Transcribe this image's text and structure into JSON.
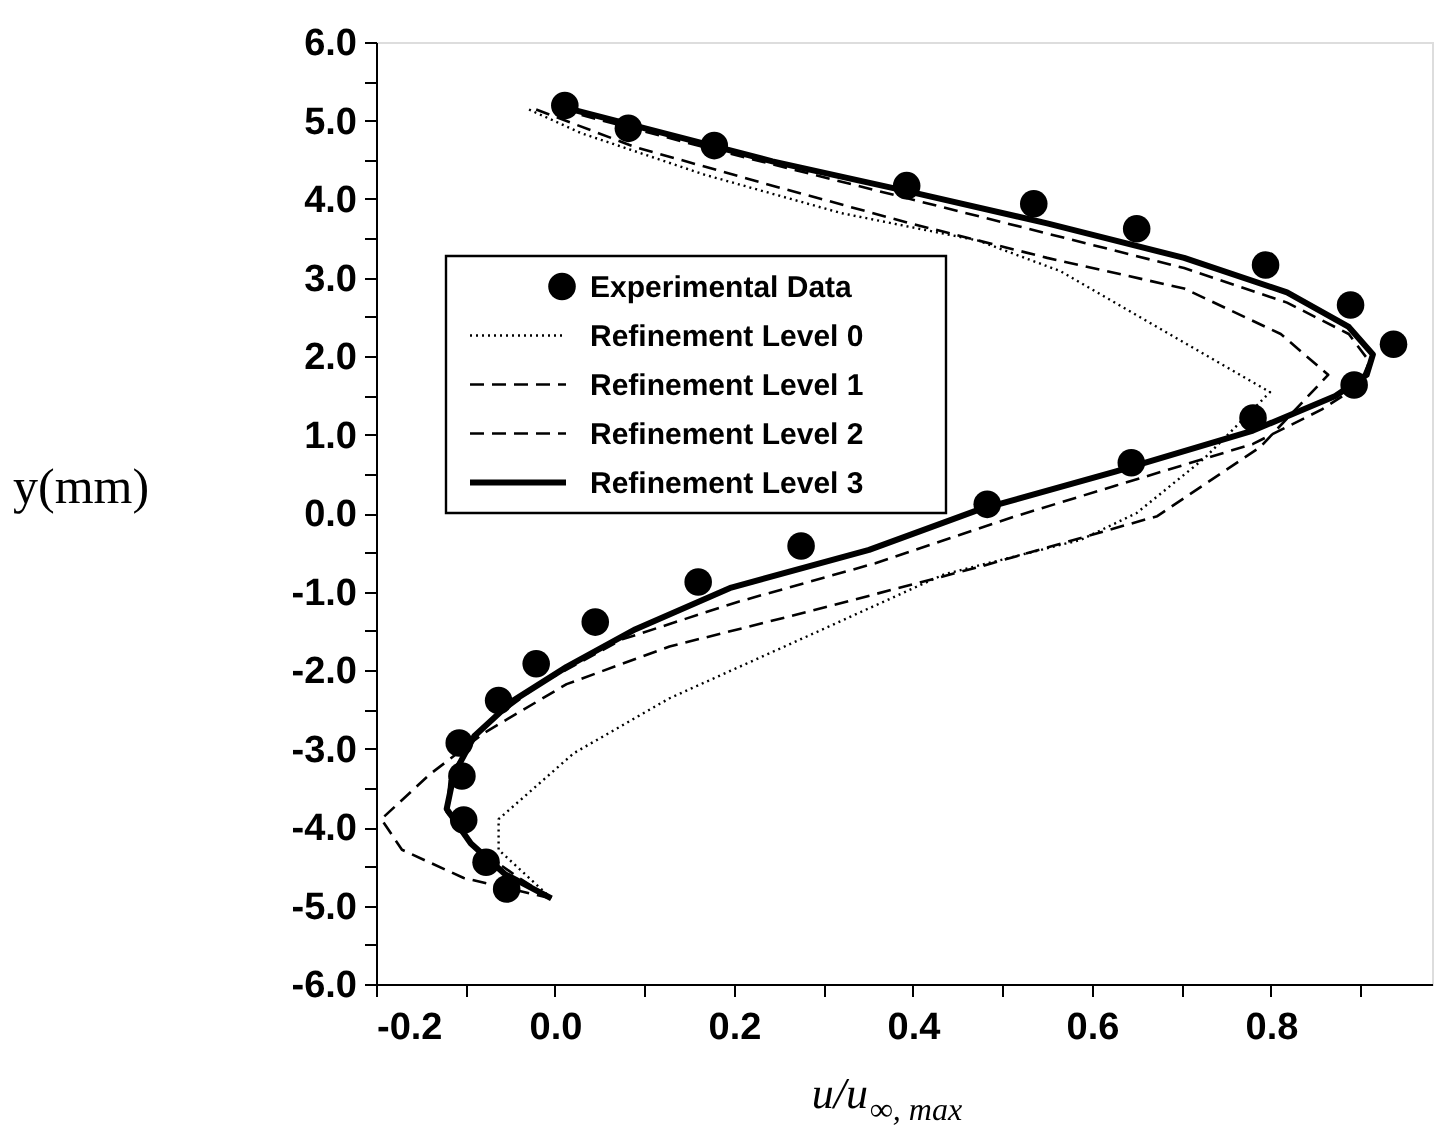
{
  "chart_data": {
    "type": "line",
    "xlabel": "u/u$_{∞, max}$",
    "ylabel": "y(mm)",
    "xlim": [
      -0.2,
      0.98
    ],
    "ylim": [
      -6,
      6
    ],
    "xticks": [
      -0.2,
      {
        "value": -0.1,
        "label": null
      },
      {
        "value": 0,
        "label": "0.0"
      },
      {
        "value": 0.1,
        "label": null
      },
      0.2,
      {
        "value": 0.3,
        "label": null
      },
      0.4,
      {
        "value": 0.5,
        "label": null
      },
      0.6,
      {
        "value": 0.7,
        "label": null
      },
      0.8,
      {
        "value": 0.9,
        "label": null
      }
    ],
    "yticks": [
      {
        "value": -6,
        "label": "-6.0"
      },
      {
        "value": -5.5,
        "label": null
      },
      {
        "value": -5,
        "label": "-5.0"
      },
      {
        "value": -4.5,
        "label": null
      },
      {
        "value": -4,
        "label": "-4.0"
      },
      {
        "value": -3.5,
        "label": null
      },
      {
        "value": -3,
        "label": "-3.0"
      },
      {
        "value": -2.5,
        "label": null
      },
      {
        "value": -2,
        "label": "-2.0"
      },
      {
        "value": -1.5,
        "label": null
      },
      {
        "value": -1,
        "label": "-1.0"
      },
      {
        "value": -0.5,
        "label": null
      },
      {
        "value": 0,
        "label": "0.0"
      },
      {
        "value": 0.5,
        "label": null
      },
      {
        "value": 1,
        "label": "1.0"
      },
      {
        "value": 1.5,
        "label": null
      },
      {
        "value": 2,
        "label": "2.0"
      },
      {
        "value": 2.5,
        "label": null
      },
      {
        "value": 3,
        "label": "3.0"
      },
      {
        "value": 3.5,
        "label": null
      },
      {
        "value": 4,
        "label": "4.0"
      },
      {
        "value": 4.5,
        "label": null
      },
      {
        "value": 5,
        "label": "5.0"
      },
      {
        "value": 5.5,
        "label": null
      },
      {
        "value": 6,
        "label": "6.0"
      }
    ],
    "grid": false,
    "legend": "top left",
    "series": [
      {
        "name": "Experimental Data",
        "type": "scatter",
        "marker": "circle",
        "color": "#000000",
        "x": [
          0.011,
          0.082,
          0.178,
          0.393,
          0.535,
          0.65,
          0.794,
          0.889,
          0.937,
          0.893,
          0.78,
          0.644,
          0.483,
          0.275,
          0.16,
          0.045,
          -0.021,
          -0.063,
          -0.107,
          -0.104,
          -0.102,
          -0.077,
          -0.054
        ],
        "values": [
          5.19,
          4.9,
          4.68,
          4.17,
          3.94,
          3.62,
          3.16,
          2.65,
          2.15,
          1.63,
          1.21,
          0.64,
          0.11,
          -0.42,
          -0.88,
          -1.39,
          -1.92,
          -2.39,
          -2.93,
          -3.35,
          -3.91,
          -4.45,
          -4.79
        ]
      },
      {
        "name": "Refinement Level 0",
        "line_style": "dotted",
        "color": "#000000",
        "x": [
          -0.029,
          0.029,
          0.167,
          0.32,
          0.473,
          0.565,
          0.665,
          0.799,
          0.726,
          0.65,
          0.588,
          0.435,
          0.282,
          0.128,
          0.021,
          -0.063,
          -0.063,
          -0.004
        ],
        "values": [
          5.14,
          4.84,
          4.31,
          3.82,
          3.47,
          3.08,
          2.42,
          1.54,
          0.7,
          0.0,
          -0.34,
          -0.78,
          -1.57,
          -2.36,
          -3.06,
          -3.9,
          -4.29,
          -4.91
        ]
      },
      {
        "name": "Refinement Level 1",
        "line_style": "dashed",
        "color": "#000000",
        "x": [
          -0.021,
          0.09,
          0.243,
          0.397,
          0.55,
          0.703,
          0.811,
          0.864,
          0.788,
          0.673,
          0.473,
          0.282,
          0.128,
          0.013,
          -0.079,
          -0.14,
          -0.194,
          -0.171,
          -0.102,
          -0.004
        ],
        "values": [
          5.14,
          4.66,
          4.17,
          3.69,
          3.25,
          2.86,
          2.28,
          1.76,
          0.84,
          -0.04,
          -0.69,
          -1.26,
          -1.7,
          -2.18,
          -2.8,
          -3.33,
          -3.9,
          -4.29,
          -4.65,
          -4.91
        ]
      },
      {
        "name": "Refinement Level 2",
        "line_style": "dashed",
        "color": "#000000",
        "x": [
          0.006,
          0.167,
          0.397,
          0.55,
          0.703,
          0.818,
          0.887,
          0.91,
          0.899,
          0.857,
          0.78,
          0.627,
          0.512,
          0.358,
          0.205,
          0.075,
          -0.017,
          -0.079,
          -0.117,
          -0.121,
          -0.09,
          -0.04,
          -0.004
        ],
        "values": [
          5.14,
          4.66,
          4.0,
          3.56,
          3.12,
          2.68,
          2.28,
          1.93,
          1.63,
          1.32,
          0.88,
          0.35,
          -0.05,
          -0.64,
          -1.13,
          -1.61,
          -2.18,
          -2.71,
          -3.33,
          -3.81,
          -4.25,
          -4.65,
          -4.91
        ]
      },
      {
        "name": "Refinement Level 3",
        "line_style": "solid",
        "color": "#000000",
        "x": [
          0.009,
          0.243,
          0.397,
          0.55,
          0.703,
          0.818,
          0.887,
          0.914,
          0.907,
          0.872,
          0.78,
          0.627,
          0.473,
          0.351,
          0.197,
          0.09,
          0.013,
          -0.048,
          -0.09,
          -0.113,
          -0.121,
          -0.094,
          -0.056,
          -0.004
        ],
        "values": [
          5.17,
          4.48,
          4.09,
          3.69,
          3.25,
          2.81,
          2.37,
          2.02,
          1.76,
          1.49,
          1.05,
          0.53,
          0.04,
          -0.47,
          -0.95,
          -1.48,
          -1.96,
          -2.4,
          -2.84,
          -3.33,
          -3.77,
          -4.21,
          -4.6,
          -4.91
        ]
      }
    ]
  }
}
